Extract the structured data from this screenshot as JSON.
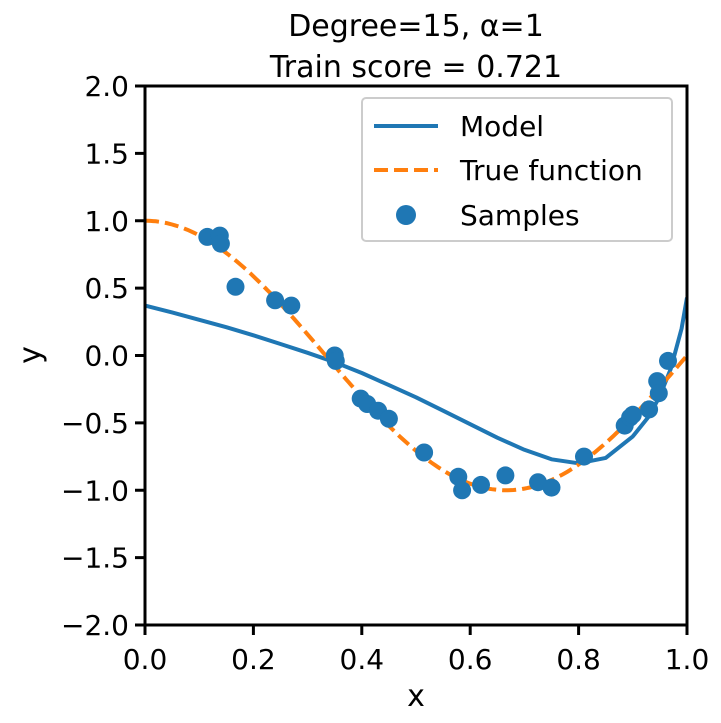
{
  "chart_data": {
    "type": "line",
    "title_lines": [
      "Degree=15, α=1",
      "Train score = 0.721"
    ],
    "xlabel": "x",
    "ylabel": "y",
    "xlim": [
      0.0,
      1.0
    ],
    "ylim": [
      -2.0,
      2.0
    ],
    "xticks": [
      0.0,
      0.2,
      0.4,
      0.6,
      0.8,
      1.0
    ],
    "xtick_labels": [
      "0.0",
      "0.2",
      "0.4",
      "0.6",
      "0.8",
      "1.0"
    ],
    "yticks": [
      -2.0,
      -1.5,
      -1.0,
      -0.5,
      0.0,
      0.5,
      1.0,
      1.5,
      2.0
    ],
    "ytick_labels": [
      "−2.0",
      "−1.5",
      "−1.0",
      "−0.5",
      "0.0",
      "0.5",
      "1.0",
      "1.5",
      "2.0"
    ],
    "grid": false,
    "legend_position": "top-right",
    "series": [
      {
        "name": "Model",
        "kind": "line",
        "style": "solid",
        "color": "#1f77b4",
        "x": [
          0.0,
          0.05,
          0.1,
          0.15,
          0.2,
          0.25,
          0.3,
          0.35,
          0.4,
          0.45,
          0.5,
          0.55,
          0.6,
          0.65,
          0.7,
          0.75,
          0.8,
          0.85,
          0.9,
          0.93,
          0.95,
          0.97,
          0.99,
          1.0
        ],
        "y": [
          0.37,
          0.32,
          0.265,
          0.21,
          0.15,
          0.085,
          0.02,
          -0.05,
          -0.13,
          -0.22,
          -0.31,
          -0.41,
          -0.51,
          -0.61,
          -0.7,
          -0.77,
          -0.8,
          -0.76,
          -0.6,
          -0.45,
          -0.3,
          -0.1,
          0.2,
          0.43
        ]
      },
      {
        "name": "True function",
        "kind": "line",
        "style": "dashed",
        "color": "#ff7f0e",
        "function": "cos(1.5*pi*x)"
      },
      {
        "name": "Samples",
        "kind": "scatter",
        "color": "#1f77b4",
        "x": [
          0.115,
          0.138,
          0.14,
          0.167,
          0.24,
          0.27,
          0.35,
          0.352,
          0.398,
          0.41,
          0.43,
          0.45,
          0.515,
          0.578,
          0.585,
          0.62,
          0.665,
          0.725,
          0.75,
          0.81,
          0.885,
          0.895,
          0.9,
          0.93,
          0.945,
          0.948,
          0.965
        ],
        "y": [
          0.88,
          0.89,
          0.83,
          0.51,
          0.41,
          0.37,
          0.0,
          -0.04,
          -0.32,
          -0.36,
          -0.41,
          -0.47,
          -0.72,
          -0.9,
          -1.0,
          -0.96,
          -0.89,
          -0.94,
          -0.98,
          -0.75,
          -0.52,
          -0.46,
          -0.44,
          -0.4,
          -0.19,
          -0.28,
          -0.04
        ]
      }
    ]
  }
}
